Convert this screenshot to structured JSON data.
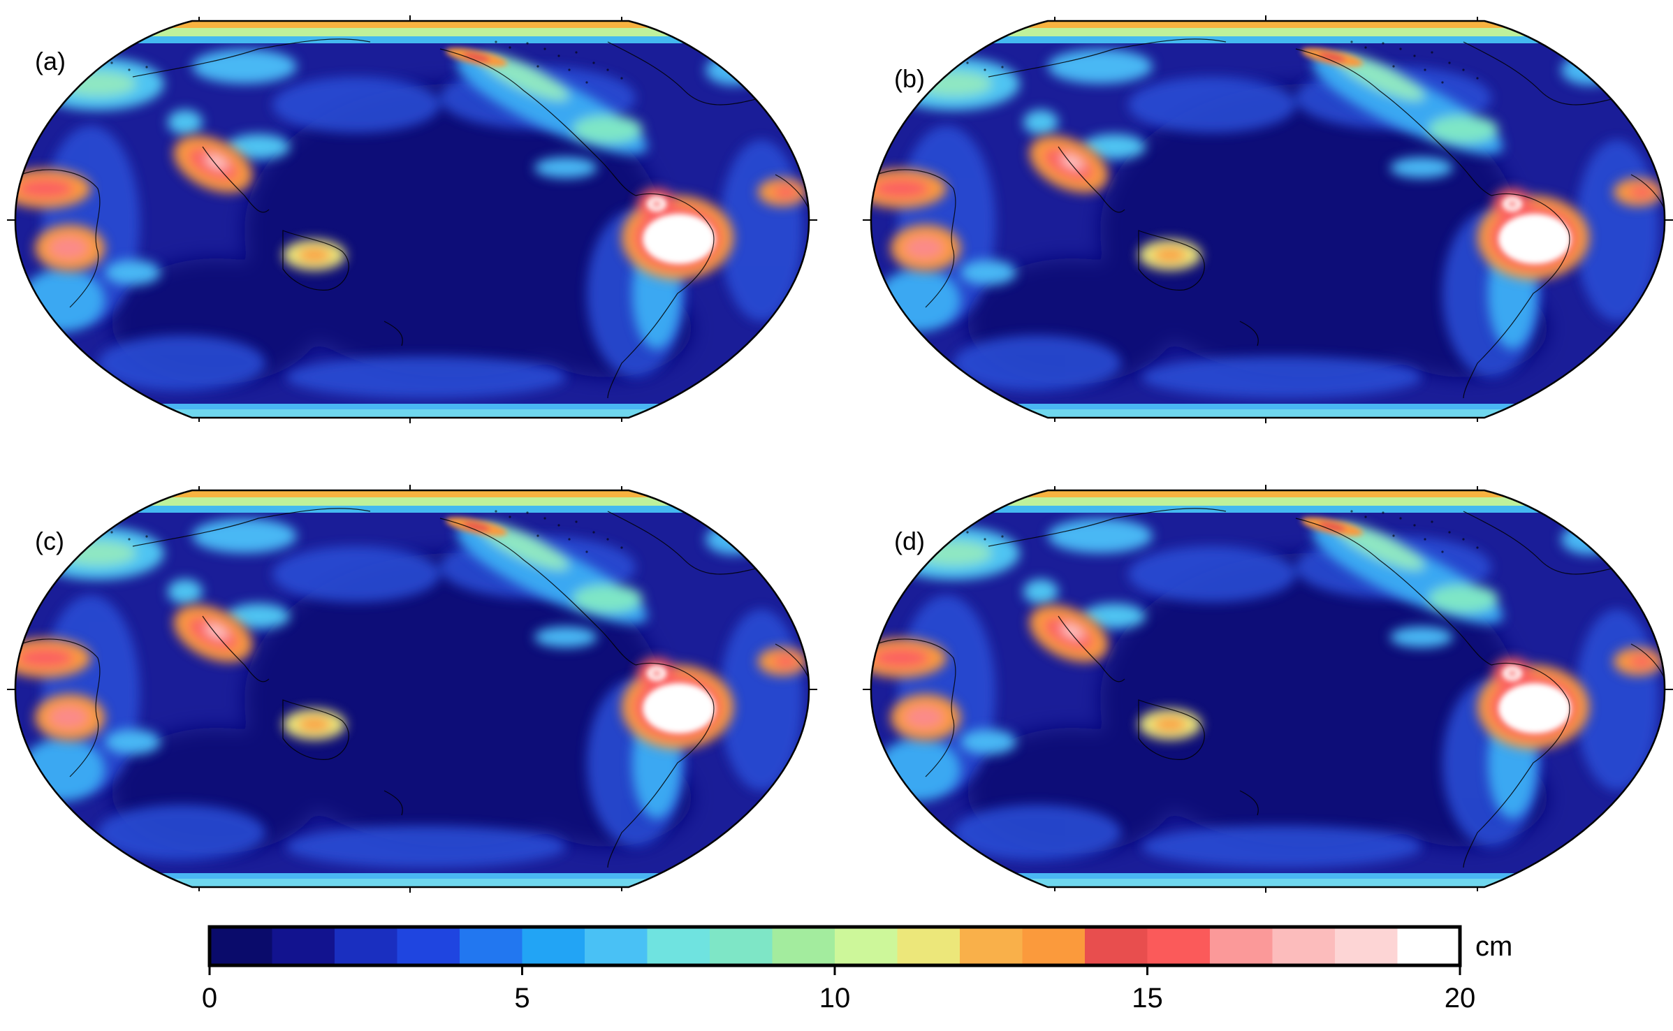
{
  "figure": {
    "projection": "Robinson (Pacific-centred global map)",
    "quantity_description": "colour-coded magnitude (cm)"
  },
  "panels": [
    {
      "label": "(a)"
    },
    {
      "label": "(b)"
    },
    {
      "label": "(c)"
    },
    {
      "label": "(d)"
    }
  ],
  "colorbar": {
    "unit": "cm",
    "min": 0,
    "max": 20,
    "step": 1,
    "ticks": [
      {
        "value": 0,
        "label": "0"
      },
      {
        "value": 5,
        "label": "5"
      },
      {
        "value": 10,
        "label": "10"
      },
      {
        "value": 15,
        "label": "15"
      },
      {
        "value": 20,
        "label": "20"
      }
    ],
    "colors": [
      "#0a0b6b",
      "#12138f",
      "#1a2fc0",
      "#1f45e0",
      "#2277f0",
      "#22a4f5",
      "#49c1f5",
      "#6fe3e0",
      "#7ee6c6",
      "#a3ec9e",
      "#cdf79a",
      "#ece77a",
      "#f9b04a",
      "#fb9a3c",
      "#e84e4e",
      "#fb5a5a",
      "#fb9999",
      "#fcbcbc",
      "#fdd5d5",
      "#ffffff"
    ]
  },
  "colors": {
    "ocean_background": "#1a1b8a",
    "deep_ocean": "#13137a",
    "coast_line": "#000000"
  }
}
